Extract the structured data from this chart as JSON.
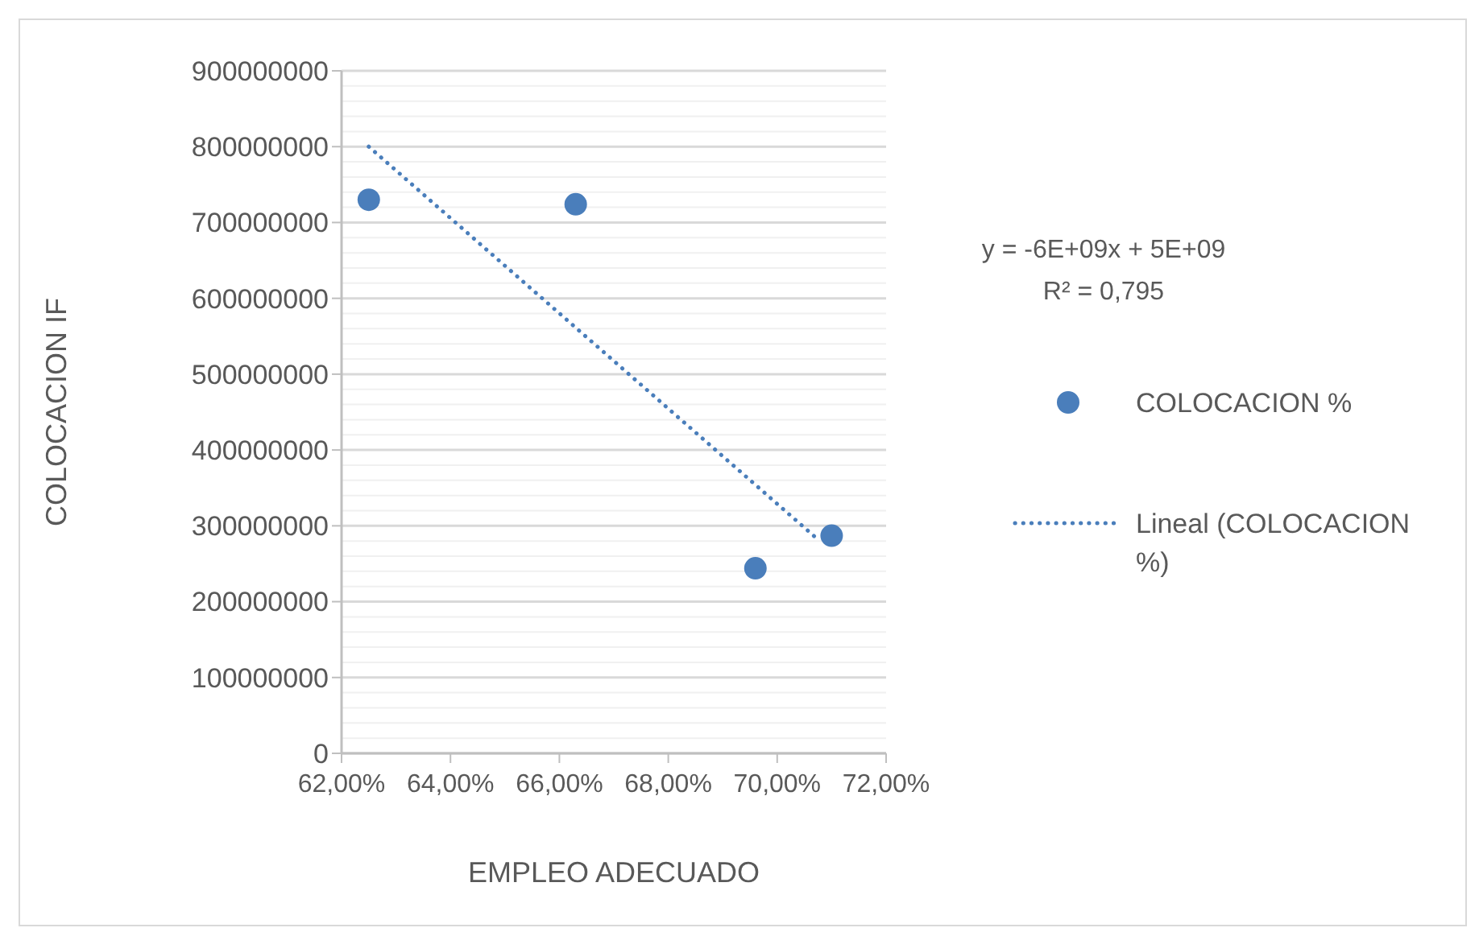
{
  "chart_data": {
    "type": "scatter",
    "xlabel": "EMPLEO ADECUADO",
    "ylabel": "COLOCACION IF",
    "annotations": [
      "y = -6E+09x + 5E+09",
      "R² = 0,795"
    ],
    "series": [
      {
        "name": "COLOCACION %",
        "color": "#4a7ebb",
        "marker": "circle",
        "x": [
          62.5,
          66.3,
          69.6,
          71.0
        ],
        "values": [
          730000000,
          724000000,
          244000000,
          287000000
        ]
      },
      {
        "name": "Lineal (COLOCACION %)",
        "type": "line",
        "color": "#4a7ebb",
        "line_style": "dotted",
        "x": [
          62.5,
          70.7
        ],
        "values": [
          800000000,
          285000000
        ]
      }
    ],
    "xlim": [
      62,
      72
    ],
    "xticks": [
      {
        "value": 62,
        "label": "62,00%"
      },
      {
        "value": 64,
        "label": "64,00%"
      },
      {
        "value": 66,
        "label": "66,00%"
      },
      {
        "value": 68,
        "label": "68,00%"
      },
      {
        "value": 70,
        "label": "70,00%"
      },
      {
        "value": 72,
        "label": "72,00%"
      }
    ],
    "ylim": [
      0,
      900000000
    ],
    "yticks": [
      0,
      {
        "value": 20000000,
        "label": null
      },
      {
        "value": 40000000,
        "label": null
      },
      {
        "value": 60000000,
        "label": null
      },
      {
        "value": 80000000,
        "label": null
      },
      100000000,
      {
        "value": 120000000,
        "label": null
      },
      {
        "value": 140000000,
        "label": null
      },
      {
        "value": 160000000,
        "label": null
      },
      {
        "value": 180000000,
        "label": null
      },
      200000000,
      {
        "value": 220000000,
        "label": null
      },
      {
        "value": 240000000,
        "label": null
      },
      {
        "value": 260000000,
        "label": null
      },
      {
        "value": 280000000,
        "label": null
      },
      300000000,
      {
        "value": 320000000,
        "label": null
      },
      {
        "value": 340000000,
        "label": null
      },
      {
        "value": 360000000,
        "label": null
      },
      {
        "value": 380000000,
        "label": null
      },
      400000000,
      {
        "value": 420000000,
        "label": null
      },
      {
        "value": 440000000,
        "label": null
      },
      {
        "value": 460000000,
        "label": null
      },
      {
        "value": 480000000,
        "label": null
      },
      500000000,
      {
        "value": 520000000,
        "label": null
      },
      {
        "value": 540000000,
        "label": null
      },
      {
        "value": 560000000,
        "label": null
      },
      {
        "value": 580000000,
        "label": null
      },
      600000000,
      {
        "value": 620000000,
        "label": null
      },
      {
        "value": 640000000,
        "label": null
      },
      {
        "value": 660000000,
        "label": null
      },
      {
        "value": 680000000,
        "label": null
      },
      700000000,
      {
        "value": 720000000,
        "label": null
      },
      {
        "value": 740000000,
        "label": null
      },
      {
        "value": 760000000,
        "label": null
      },
      {
        "value": 780000000,
        "label": null
      },
      800000000,
      {
        "value": 820000000,
        "label": null
      },
      {
        "value": 840000000,
        "label": null
      },
      {
        "value": 860000000,
        "label": null
      },
      {
        "value": 880000000,
        "label": null
      },
      900000000
    ],
    "grid": "y",
    "legend": "right"
  }
}
